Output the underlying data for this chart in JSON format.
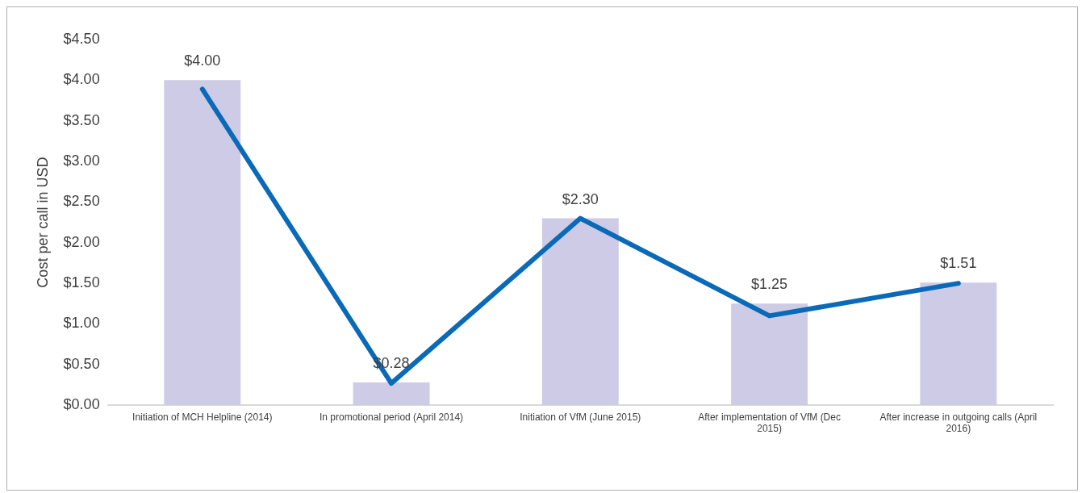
{
  "chart_data": {
    "type": "bar",
    "ylabel": "Cost per call in USD",
    "categories": [
      "Initiation of MCH Helpline (2014)",
      "In promotional period (April 2014)",
      "Initiation of VfM (June 2015)",
      "After implementation of VfM (Dec 2015)",
      "After increase in outgoing calls (April 2016)"
    ],
    "series": [
      {
        "color": "#cdcbe6",
        "values": [
          4.0,
          0.28,
          2.3,
          1.25,
          1.51
        ],
        "value_labels": [
          "$4.00",
          "$0.28",
          "$2.30",
          "$1.25",
          "$1.51"
        ]
      },
      {
        "type": "line",
        "color": "#0a6ab8",
        "values": [
          3.89,
          0.27,
          2.3,
          1.1,
          1.5
        ]
      }
    ],
    "ylim": [
      0,
      4.5
    ],
    "yticks": [
      {
        "value": 0,
        "label": "$0.00"
      },
      {
        "value": 0.5,
        "label": "$0.50"
      },
      {
        "value": 1,
        "label": "$1.00"
      },
      {
        "value": 1.5,
        "label": "$1.50"
      },
      {
        "value": 2,
        "label": "$2.00"
      },
      {
        "value": 2.5,
        "label": "$2.50"
      },
      {
        "value": 3,
        "label": "$3.00"
      },
      {
        "value": 3.5,
        "label": "$3.50"
      },
      {
        "value": 4,
        "label": "$4.00"
      },
      {
        "value": 4.5,
        "label": "$4.50"
      }
    ],
    "grid": false,
    "legend": false,
    "marker": "none",
    "line_style": "solid"
  }
}
